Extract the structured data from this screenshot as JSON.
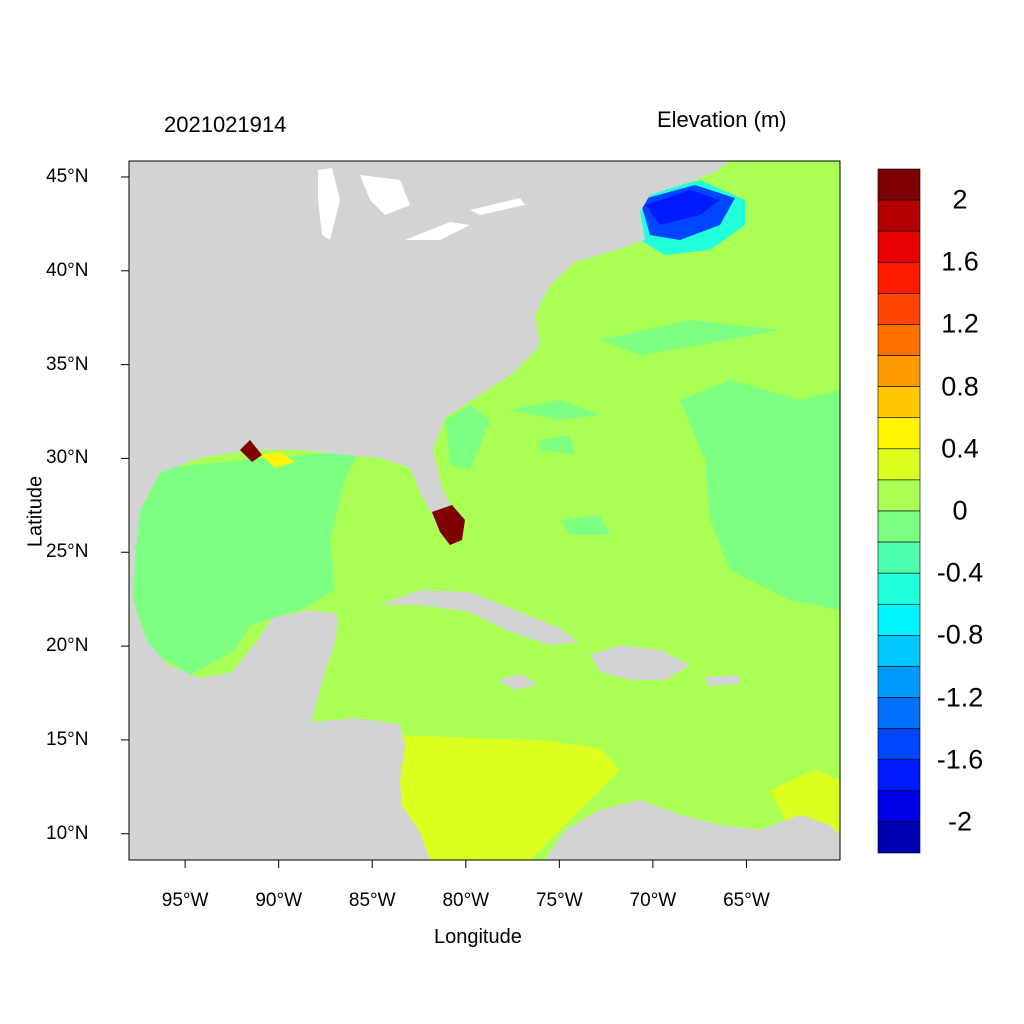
{
  "title_left": "2021021914",
  "title_right": "Elevation (m)",
  "xlabel": "Longitude",
  "ylabel": "Latitude",
  "map": {
    "lon_range": [
      -98,
      -60
    ],
    "lat_range": [
      8.6,
      45.85
    ],
    "x_ticks": [
      {
        "lon": -95,
        "label": "95°W"
      },
      {
        "lon": -90,
        "label": "90°W"
      },
      {
        "lon": -85,
        "label": "85°W"
      },
      {
        "lon": -80,
        "label": "80°W"
      },
      {
        "lon": -75,
        "label": "75°W"
      },
      {
        "lon": -70,
        "label": "70°W"
      },
      {
        "lon": -65,
        "label": "65°W"
      }
    ],
    "y_ticks": [
      {
        "lat": 45,
        "label": "45°N"
      },
      {
        "lat": 40,
        "label": "40°N"
      },
      {
        "lat": 35,
        "label": "35°N"
      },
      {
        "lat": 30,
        "label": "30°N"
      },
      {
        "lat": 25,
        "label": "25°N"
      },
      {
        "lat": 20,
        "label": "20°N"
      },
      {
        "lat": 15,
        "label": "15°N"
      },
      {
        "lat": 10,
        "label": "10°N"
      }
    ],
    "land_color": "#d3d3d3",
    "lake_color": "#ffffff"
  },
  "colorbar": {
    "range": [
      -2.2,
      2.2
    ],
    "step": 0.2,
    "colors_top_to_bottom": [
      "#7f0000",
      "#b30000",
      "#e60000",
      "#ff1a00",
      "#ff4500",
      "#ff7000",
      "#ff9a00",
      "#ffc800",
      "#fff500",
      "#dcff1f",
      "#aaff55",
      "#7dff82",
      "#4fffb0",
      "#22ffdc",
      "#00f5ff",
      "#00c8ff",
      "#009aff",
      "#0070ff",
      "#0045ff",
      "#001aff",
      "#0000e6",
      "#0000b3"
    ],
    "labels": [
      {
        "value": 2,
        "label": "2"
      },
      {
        "value": 1.6,
        "label": "1.6"
      },
      {
        "value": 1.2,
        "label": "1.2"
      },
      {
        "value": 0.8,
        "label": "0.8"
      },
      {
        "value": 0.4,
        "label": "0.4"
      },
      {
        "value": 0,
        "label": "0"
      },
      {
        "value": -0.4,
        "label": "-0.4"
      },
      {
        "value": -0.8,
        "label": "-0.8"
      },
      {
        "value": -1.2,
        "label": "-1.2"
      },
      {
        "value": -1.6,
        "label": "-1.6"
      },
      {
        "value": -2,
        "label": "-2"
      }
    ]
  }
}
